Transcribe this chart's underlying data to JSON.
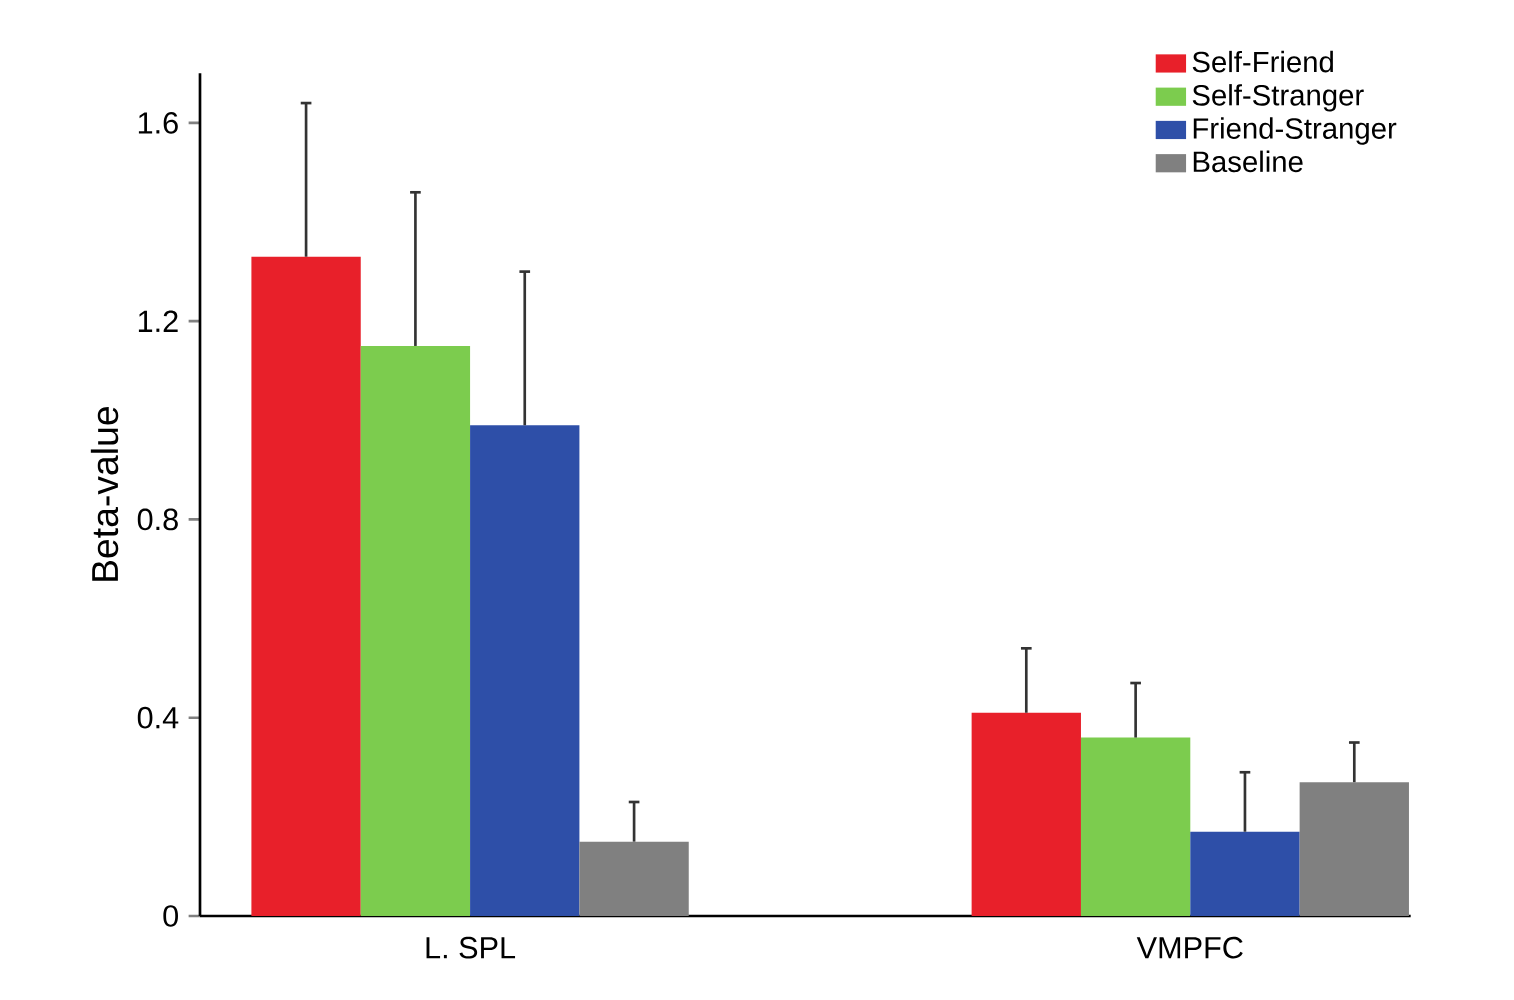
{
  "chart_data": {
    "type": "bar",
    "ylabel": "Beta-value",
    "categories": [
      "L. SPL",
      "VMPFC"
    ],
    "series": [
      {
        "name": "Self-Friend",
        "color": "#e8202a",
        "values": [
          1.33,
          0.41
        ],
        "errors": [
          [
            1.33,
            1.64
          ],
          [
            0.41,
            0.54
          ]
        ]
      },
      {
        "name": "Self-Stranger",
        "color": "#7ccc4e",
        "values": [
          1.15,
          0.36
        ],
        "errors": [
          [
            1.15,
            1.46
          ],
          [
            0.36,
            0.47
          ]
        ]
      },
      {
        "name": "Friend-Stranger",
        "color": "#2e4fa8",
        "values": [
          0.99,
          0.17
        ],
        "errors": [
          [
            0.99,
            1.3
          ],
          [
            0.17,
            0.29
          ]
        ]
      },
      {
        "name": "Baseline",
        "color": "#808080",
        "values": [
          0.15,
          0.27
        ],
        "errors": [
          [
            0.15,
            0.23
          ],
          [
            0.27,
            0.35
          ]
        ]
      }
    ],
    "ylim": [
      0,
      1.7
    ],
    "yticks": [
      0,
      0.4,
      0.8,
      1.2,
      1.6
    ],
    "legend": "top right"
  }
}
